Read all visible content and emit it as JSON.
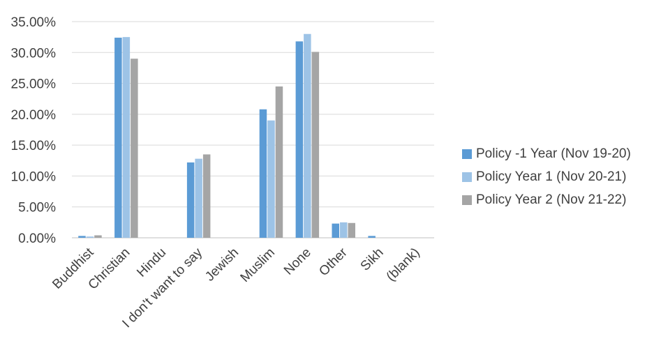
{
  "chart_data": {
    "type": "bar",
    "title": "",
    "xlabel": "",
    "ylabel": "",
    "ylim": [
      0,
      0.35
    ],
    "yticks": [
      "0.00%",
      "5.00%",
      "10.00%",
      "15.00%",
      "20.00%",
      "25.00%",
      "30.00%",
      "35.00%"
    ],
    "ytick_values": [
      0,
      0.05,
      0.1,
      0.15,
      0.2,
      0.25,
      0.3,
      0.35
    ],
    "grid": true,
    "legend_position": "right",
    "categories": [
      "Buddhist",
      "Christian",
      "Hindu",
      "I don't want to say",
      "Jewish",
      "Muslim",
      "None",
      "Other",
      "Sikh",
      "(blank)"
    ],
    "series": [
      {
        "name": "Policy -1 Year (Nov 19-20)",
        "color": "#5b9bd5",
        "values": [
          0.003,
          0.324,
          0,
          0.122,
          0,
          0.208,
          0.318,
          0.023,
          0.003,
          0
        ]
      },
      {
        "name": "Policy Year 1 (Nov 20-21)",
        "color": "#9dc3e6",
        "values": [
          0.002,
          0.325,
          0,
          0.128,
          0,
          0.19,
          0.33,
          0.025,
          0,
          0
        ]
      },
      {
        "name": "Policy Year 2 (Nov 21-22)",
        "color": "#a5a5a5",
        "values": [
          0.004,
          0.29,
          0,
          0.135,
          0,
          0.245,
          0.301,
          0.024,
          0,
          0
        ]
      }
    ]
  }
}
